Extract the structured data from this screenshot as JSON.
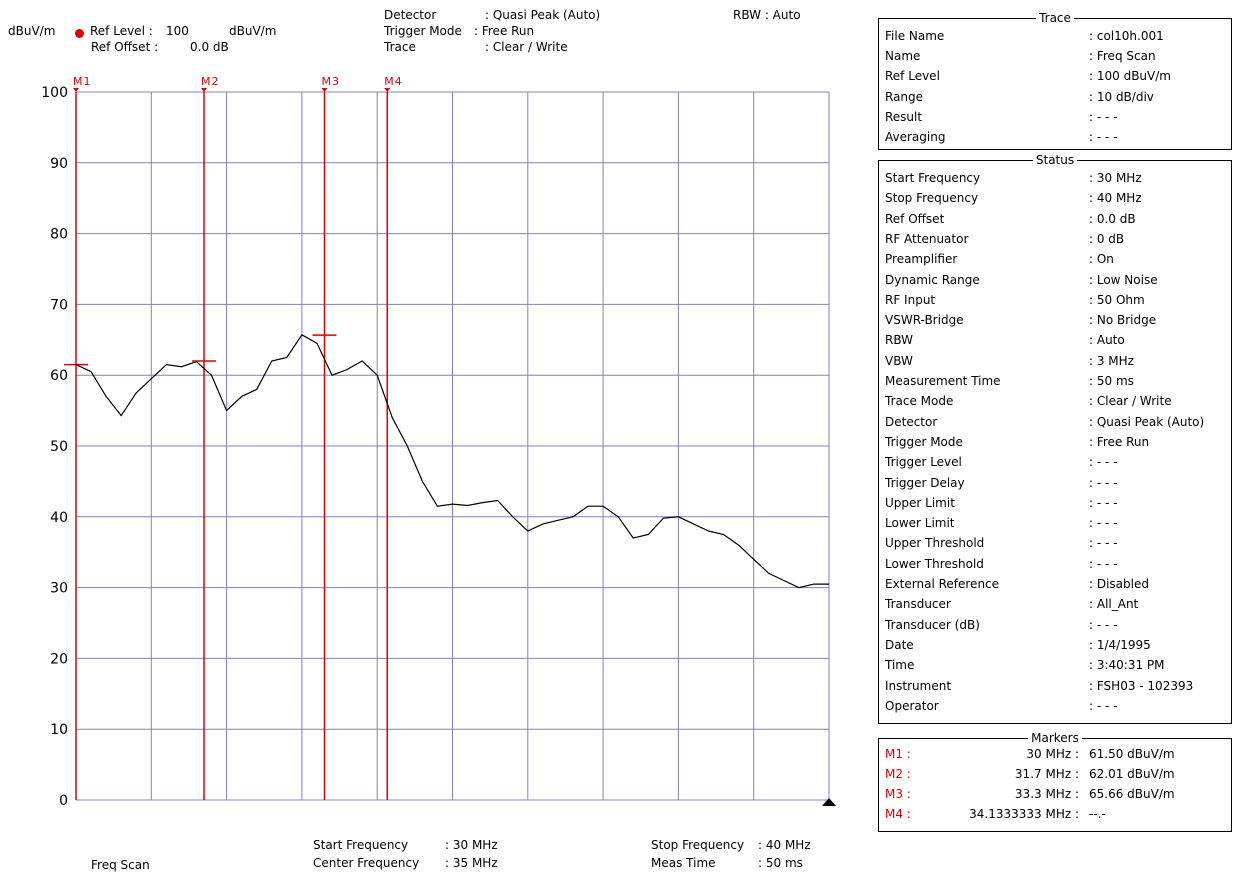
{
  "header": {
    "unit": "dBuV/m",
    "ref_level_label": "Ref Level :",
    "ref_level_value": "100",
    "ref_level_unit": "dBuV/m",
    "ref_offset_label": "Ref Offset :",
    "ref_offset_value": "0.0 dB",
    "detector_label": "Detector",
    "detector_value": ": Quasi Peak (Auto)",
    "trigger_label": "Trigger Mode",
    "trigger_value": ": Free Run",
    "trace_label": "Trace",
    "trace_value": ": Clear / Write",
    "rbw": "RBW : Auto"
  },
  "footer": {
    "left": "Freq Scan",
    "start_label": "Start Frequency",
    "start_value": ": 30 MHz",
    "center_label": "Center Frequency",
    "center_value": ": 35 MHz",
    "stop_label": "Stop Frequency",
    "stop_value": ": 40 MHz",
    "meas_label": "Meas Time",
    "meas_value": ": 50 ms"
  },
  "trace_panel": {
    "title": "Trace",
    "rows": [
      {
        "label": "File Name",
        "value": ": col10h.001"
      },
      {
        "label": "Name",
        "value": ": Freq Scan"
      },
      {
        "label": "Ref Level",
        "value": ": 100     dBuV/m"
      },
      {
        "label": "Range",
        "value": ": 10 dB/div"
      },
      {
        "label": "Result",
        "value": ": - - -"
      },
      {
        "label": "Averaging",
        "value": ": - - -"
      }
    ]
  },
  "status_panel": {
    "title": "Status",
    "rows": [
      {
        "label": "Start Frequency",
        "value": ":   30     MHz"
      },
      {
        "label": "Stop Frequency",
        "value": ":   40     MHz"
      },
      {
        "label": "Ref Offset",
        "value": ":     0.0  dB"
      },
      {
        "label": "RF Attenuator",
        "value": ":    0     dB"
      },
      {
        "label": "Preamplifier",
        "value": ": On"
      },
      {
        "label": "Dynamic Range",
        "value": ": Low Noise"
      },
      {
        "label": "RF Input",
        "value": ":   50     Ohm"
      },
      {
        "label": "VSWR-Bridge",
        "value": ": No Bridge"
      },
      {
        "label": "RBW",
        "value": ": Auto"
      },
      {
        "label": "VBW",
        "value": ":    3      MHz"
      },
      {
        "label": "Measurement Time",
        "value": ":   50      ms"
      },
      {
        "label": "Trace Mode",
        "value": ": Clear / Write"
      },
      {
        "label": "Detector",
        "value": ": Quasi Peak (Auto)"
      },
      {
        "label": "Trigger Mode",
        "value": ": Free Run"
      },
      {
        "label": "Trigger Level",
        "value": ": - - -"
      },
      {
        "label": "Trigger Delay",
        "value": ": - - -"
      },
      {
        "label": "Upper Limit",
        "value": ": - - -"
      },
      {
        "label": "Lower Limit",
        "value": ": - - -"
      },
      {
        "label": "Upper Threshold",
        "value": ": - - -"
      },
      {
        "label": "Lower Threshold",
        "value": ": - - -"
      },
      {
        "label": "External Reference",
        "value": ": Disabled"
      },
      {
        "label": "Transducer",
        "value": ": All_Ant"
      },
      {
        "label": "Transducer (dB)",
        "value": ": - - -"
      },
      {
        "label": "Date",
        "value": ": 1/4/1995"
      },
      {
        "label": "Time",
        "value": ": 3:40:31 PM"
      },
      {
        "label": "Instrument",
        "value": ": FSH03 - 102393"
      },
      {
        "label": "Operator",
        "value": ": - - -"
      }
    ]
  },
  "markers_panel": {
    "title": "Markers",
    "rows": [
      {
        "marker": "M1 :",
        "freq": "30 MHz :",
        "level": "61.50 dBuV/m"
      },
      {
        "marker": "M2 :",
        "freq": "31.7 MHz :",
        "level": "62.01 dBuV/m"
      },
      {
        "marker": "M3 :",
        "freq": "33.3 MHz :",
        "level": "65.66 dBuV/m"
      },
      {
        "marker": "M4 :",
        "freq": "34.1333333 MHz :",
        "level": "--.-"
      }
    ]
  },
  "colors": {
    "grid": "#8080c0",
    "trace": "#000000",
    "marker": "#e00000",
    "ref_dot": "#e00000"
  },
  "chart_data": {
    "type": "line",
    "xlim": [
      30,
      40
    ],
    "ylim": [
      0,
      100
    ],
    "yticks": [
      0,
      10,
      20,
      30,
      40,
      50,
      60,
      70,
      80,
      90,
      100
    ],
    "ytick_labels": [
      "0",
      "10",
      "20",
      "30",
      "40",
      "50",
      "60",
      "70",
      "80",
      "90",
      "100"
    ],
    "grid": true,
    "x_unit": "MHz",
    "y_unit": "dBuV/m",
    "markers": [
      {
        "name": "M1",
        "x": 30.0,
        "y": 61.5
      },
      {
        "name": "M2",
        "x": 31.7,
        "y": 62.01
      },
      {
        "name": "M3",
        "x": 33.3,
        "y": 65.66
      },
      {
        "name": "M4",
        "x": 34.1333333,
        "y": null
      }
    ],
    "series": [
      {
        "x": [
          30.0,
          30.2,
          30.4,
          30.6,
          30.8,
          31.0,
          31.2,
          31.4,
          31.6,
          31.8,
          32.0,
          32.2,
          32.4,
          32.6,
          32.8,
          33.0,
          33.2,
          33.4,
          33.6,
          33.8,
          34.0,
          34.2,
          34.4,
          34.6,
          34.8,
          35.0,
          35.2,
          35.4,
          35.6,
          35.8,
          36.0,
          36.2,
          36.4,
          36.6,
          36.8,
          37.0,
          37.2,
          37.4,
          37.6,
          37.8,
          38.0,
          38.2,
          38.4,
          38.6,
          38.8,
          39.0,
          39.2,
          39.4,
          39.6,
          39.8,
          40.0
        ],
        "y": [
          61.5,
          60.5,
          57.0,
          54.3,
          57.5,
          59.5,
          61.5,
          61.2,
          61.9,
          60.0,
          55.0,
          57.0,
          58.0,
          62.0,
          62.5,
          65.7,
          64.5,
          60.0,
          60.8,
          62.0,
          60.0,
          54.0,
          50.0,
          45.0,
          41.5,
          41.8,
          41.6,
          42.0,
          42.3,
          40.0,
          38.0,
          39.0,
          39.5,
          40.0,
          41.5,
          41.5,
          40.0,
          37.0,
          37.5,
          39.8,
          40.0,
          39.0,
          38.0,
          37.5,
          36.0,
          34.0,
          32.0,
          31.0,
          30.0,
          30.5,
          30.5
        ]
      }
    ]
  }
}
